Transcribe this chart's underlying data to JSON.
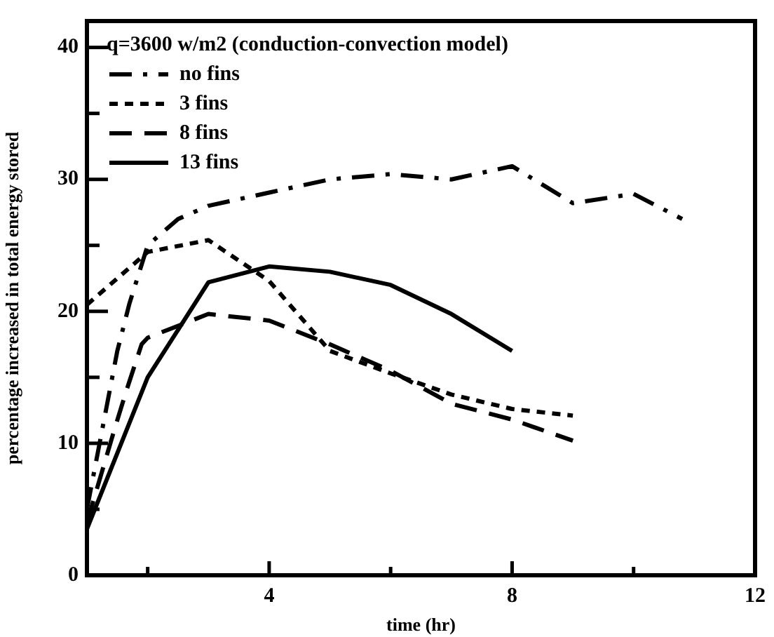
{
  "chart_data": {
    "type": "line",
    "title": "q=3600 w/m2 (conduction-convection model)",
    "xlabel": "time (hr)",
    "ylabel": "percentage increased in total energy stored",
    "xlim": [
      1,
      12
    ],
    "xticks": [
      {
        "value": 2,
        "label": null
      },
      4,
      {
        "value": 6,
        "label": null
      },
      8,
      {
        "value": 10,
        "label": null
      },
      12
    ],
    "ylim": [
      0,
      42
    ],
    "yticks": [
      0,
      {
        "value": 5,
        "label": null
      },
      10,
      {
        "value": 15,
        "label": null
      },
      20,
      {
        "value": 25,
        "label": null
      },
      30,
      {
        "value": 35,
        "label": null
      },
      40
    ],
    "grid": false,
    "legend": "top left",
    "marker": "none",
    "series": [
      {
        "name": "no fins",
        "color": "#000000",
        "line_style": "dashdot",
        "x": [
          1,
          1.25,
          1.5,
          1.7,
          2,
          2.5,
          3,
          4,
          5,
          6,
          7,
          8,
          9,
          10,
          10.8
        ],
        "values": [
          5,
          11,
          17,
          20.6,
          25,
          27,
          28,
          29,
          30,
          30.4,
          30,
          31,
          28.2,
          28.9,
          27
        ]
      },
      {
        "name": "3 fins",
        "color": "#000000",
        "line_style": "dotted",
        "x": [
          1,
          1.5,
          2,
          3,
          4,
          5,
          6,
          7,
          8,
          9
        ],
        "values": [
          20.5,
          22.5,
          24.5,
          25.4,
          22.3,
          17,
          15.3,
          13.7,
          12.6,
          12.1
        ]
      },
      {
        "name": "8 fins",
        "color": "#000000",
        "line_style": "dashed",
        "x": [
          1,
          1.45,
          1.65,
          1.9,
          2,
          3,
          4,
          5,
          6,
          7,
          8,
          9
        ],
        "values": [
          4,
          11,
          14,
          17.5,
          18,
          19.8,
          19.3,
          17.5,
          15.5,
          13,
          11.8,
          10.2
        ]
      },
      {
        "name": "13 fins",
        "color": "#000000",
        "line_style": "solid",
        "x": [
          1,
          2,
          3,
          4,
          5,
          6,
          7,
          8
        ],
        "values": [
          3.5,
          15,
          22.2,
          23.4,
          23,
          22,
          19.8,
          17
        ]
      }
    ]
  }
}
